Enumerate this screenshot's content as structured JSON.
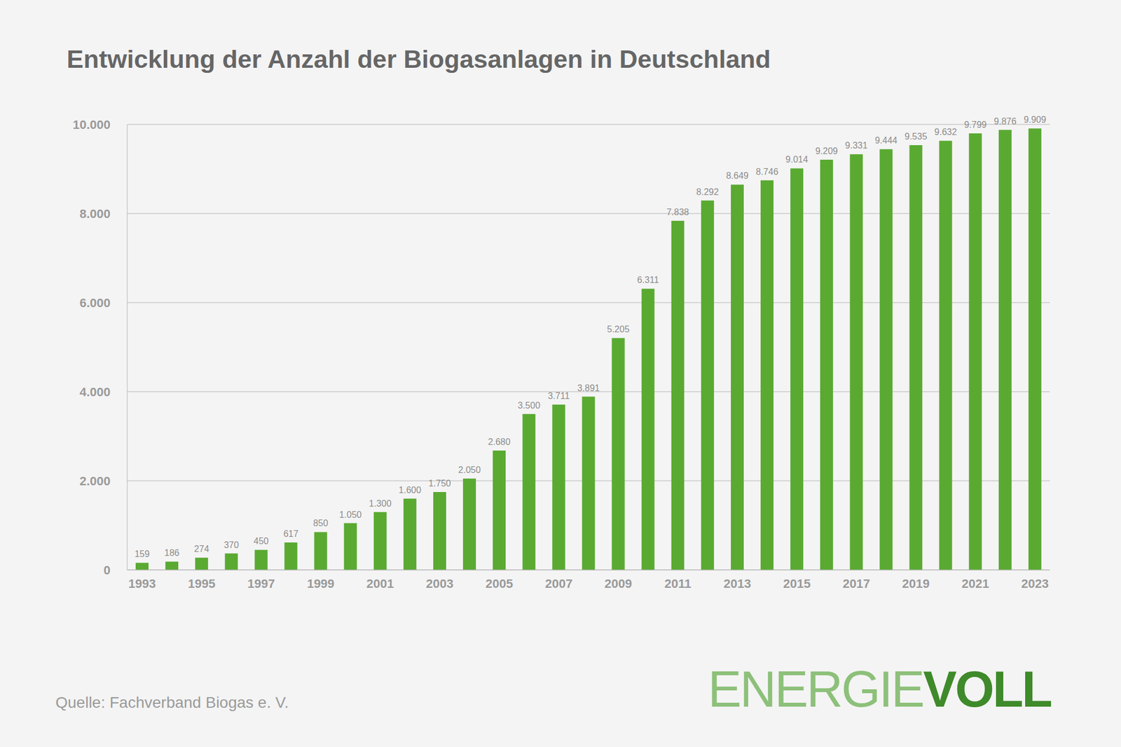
{
  "chart_data": {
    "type": "bar",
    "title": "Entwicklung der Anzahl der Biogasanlagen in Deutschland",
    "source": "Quelle: Fachverband Biogas e. V.",
    "logo_light": "ENERGIE",
    "logo_bold": "VOLL",
    "categories": [
      "1993",
      null,
      "1995",
      null,
      "1997",
      null,
      "1999",
      null,
      "2001",
      null,
      "2003",
      null,
      "2005",
      null,
      "2007",
      null,
      "2009",
      null,
      "2011",
      null,
      "2013",
      null,
      "2015",
      null,
      "2017",
      null,
      "2019",
      null,
      "2021",
      null,
      "2023"
    ],
    "values": [
      159,
      186,
      274,
      370,
      450,
      617,
      850,
      1050,
      1300,
      1600,
      1750,
      2050,
      2680,
      3500,
      3711,
      3891,
      5205,
      6311,
      7838,
      8292,
      8649,
      8746,
      9014,
      9209,
      9331,
      9444,
      9535,
      9632,
      9799,
      9876,
      9909
    ],
    "value_labels": [
      "159",
      "186",
      "274",
      "370",
      "450",
      "617",
      "850",
      "1.050",
      "1.300",
      "1.600",
      "1.750",
      "2.050",
      "2.680",
      "3.500",
      "3.711",
      "3.891",
      "5.205",
      "6.311",
      "7.838",
      "8.292",
      "8.649",
      "8.746",
      "9.014",
      "9.209",
      "9.331",
      "9.444",
      "9.535",
      "9.632",
      "9.799",
      "9.876",
      "9.909"
    ],
    "color": "#5aaa32",
    "ylim": [
      0,
      10000
    ],
    "yticks": [
      0,
      {
        "value": 2000,
        "label": "2.000"
      },
      {
        "value": 4000,
        "label": "4.000"
      },
      {
        "value": 6000,
        "label": "6.000"
      },
      {
        "value": 8000,
        "label": "8.000"
      },
      {
        "value": 10000,
        "label": "10.000"
      }
    ],
    "grid": true,
    "data_labels": true
  }
}
